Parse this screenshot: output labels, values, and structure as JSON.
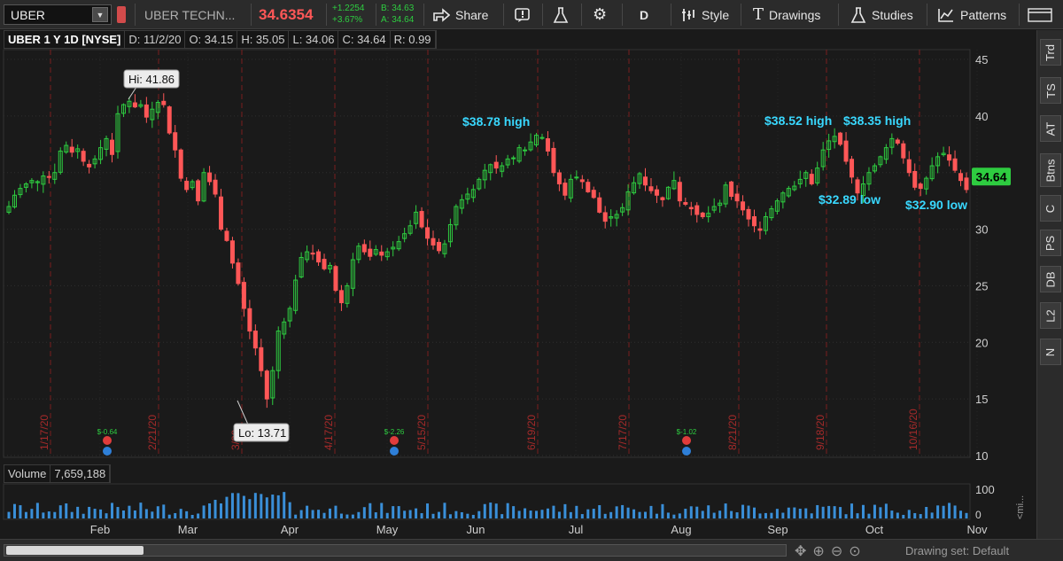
{
  "toolbar": {
    "symbol": "UBER",
    "company": "UBER TECHN...",
    "last_price": "34.6354",
    "net_change": "+1.2254",
    "pct_change": "+3.67%",
    "bid": "B: 34.63",
    "ask": "A: 34.64",
    "share_label": "Share",
    "aggregation": "D",
    "style_label": "Style",
    "drawings_label": "Drawings",
    "studies_label": "Studies",
    "patterns_label": "Patterns",
    "colors": {
      "up": "#2ecc40",
      "down": "#ff5757",
      "background": "#1a1a1a"
    }
  },
  "header": {
    "title": "UBER 1 Y 1D [NYSE]",
    "date": "D: 11/2/20",
    "open": "O: 34.15",
    "high": "H: 35.05",
    "low": "L: 34.06",
    "close": "C: 34.64",
    "ratio": "R: 0.99"
  },
  "right_panel": {
    "items": [
      "Trd",
      "TS",
      "AT",
      "Btns",
      "C",
      "PS",
      "DB",
      "L2",
      "N"
    ]
  },
  "volume": {
    "label": "Volume",
    "value": "7,659,188",
    "axis_max": "100",
    "axis_zero": "0",
    "collapsed_label": "<mi..."
  },
  "bottom": {
    "drawing_set": "Drawing set: Default"
  },
  "chart_data": {
    "type": "candlestick",
    "title": "UBER 1 Y 1D [NYSE]",
    "ylim": [
      10,
      46
    ],
    "y_ticks": [
      10,
      15,
      20,
      25,
      30,
      35,
      40,
      45
    ],
    "x_ticks": [
      "Feb",
      "Mar",
      "Apr",
      "May",
      "Jun",
      "Jul",
      "Aug",
      "Sep",
      "Oct",
      "Nov"
    ],
    "event_lines": [
      "1/17/20",
      "2/21/20",
      "3/20",
      "4/17/20",
      "5/15/20",
      "6/19/20",
      "7/17/20",
      "8/21/20",
      "9/18/20",
      "10/16/20"
    ],
    "last_price_label": "34.64",
    "earnings_markers": [
      "$-0.64",
      "$-2.26",
      "$-1.02"
    ],
    "annotations": [
      {
        "text": "Hi: 41.86",
        "value": 41.86
      },
      {
        "text": "Lo: 13.71",
        "value": 13.71
      },
      {
        "text": "$38.78 high",
        "value": 38.78
      },
      {
        "text": "$38.52 high",
        "value": 38.52
      },
      {
        "text": "$38.35 high",
        "value": 38.35
      },
      {
        "text": "$32.89 low",
        "value": 32.89
      },
      {
        "text": "$32.90 low",
        "value": 32.9
      }
    ],
    "close_series": [
      32.0,
      33.0,
      33.6,
      34.0,
      34.3,
      34.2,
      34.7,
      34.6,
      35.0,
      36.9,
      37.4,
      36.8,
      37.1,
      36.0,
      35.5,
      36.2,
      37.2,
      38.0,
      36.6,
      40.2,
      41.0,
      41.3,
      40.8,
      41.0,
      39.9,
      40.6,
      41.2,
      41.0,
      38.5,
      37.0,
      34.5,
      33.5,
      34.2,
      32.5,
      35.0,
      34.2,
      33.1,
      30.0,
      29.0,
      27.0,
      25.2,
      23.0,
      21.0,
      19.5,
      17.5,
      15.0,
      17.5,
      21.0,
      21.8,
      23.0,
      25.5,
      27.5,
      28.0,
      27.8,
      27.1,
      26.5,
      26.8,
      24.6,
      23.5,
      25.0,
      27.3,
      28.5,
      28.0,
      27.6,
      28.2,
      27.7,
      28.0,
      28.4,
      28.9,
      29.6,
      30.3,
      31.5,
      30.2,
      29.2,
      28.6,
      28.1,
      28.7,
      30.4,
      32.0,
      32.6,
      33.1,
      33.5,
      34.4,
      35.2,
      35.7,
      35.4,
      35.6,
      36.2,
      36.3,
      37.2,
      37.0,
      37.7,
      38.3,
      38.1,
      36.9,
      35.0,
      34.0,
      33.0,
      34.4,
      34.6,
      34.2,
      33.3,
      32.8,
      31.5,
      30.7,
      31.1,
      31.3,
      31.9,
      33.3,
      34.1,
      34.9,
      33.9,
      33.4,
      33.0,
      32.6,
      33.7,
      34.3,
      32.5,
      32.2,
      31.8,
      31.3,
      31.1,
      31.4,
      32.0,
      32.3,
      33.9,
      32.9,
      32.5,
      31.7,
      30.9,
      30.3,
      29.9,
      31.1,
      31.8,
      32.5,
      33.2,
      33.6,
      33.8,
      34.4,
      35.0,
      34.0,
      35.4,
      37.0,
      37.8,
      38.2,
      37.5,
      36.0,
      34.6,
      33.2,
      34.0,
      35.0,
      35.6,
      36.4,
      37.2,
      38.0,
      37.6,
      36.3,
      35.0,
      33.7,
      33.6,
      34.5,
      35.6,
      36.4,
      36.7,
      36.1,
      35.2,
      34.3,
      33.5
    ]
  }
}
